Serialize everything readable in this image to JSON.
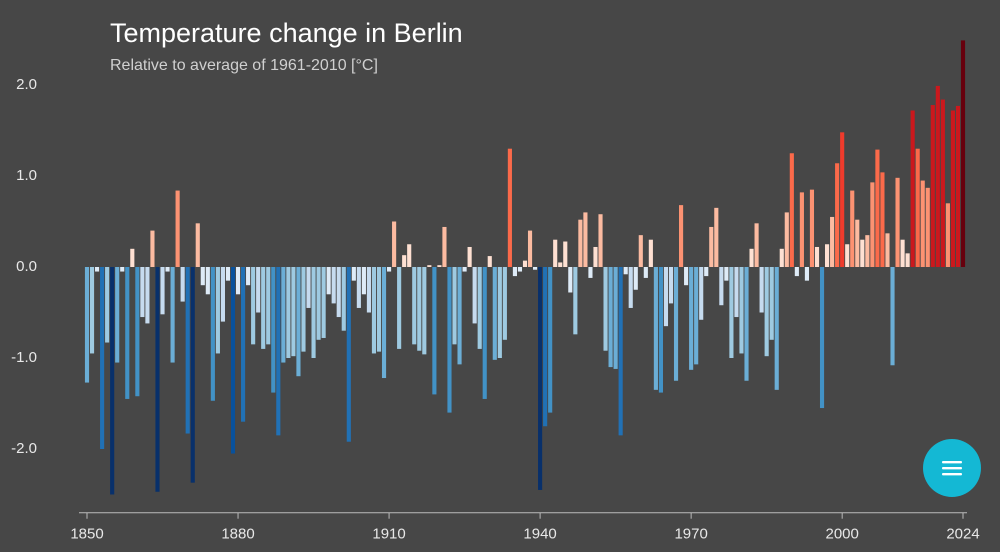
{
  "chart_data": {
    "type": "bar",
    "title": "Temperature change in Berlin",
    "subtitle": "Relative to average of 1961-2010  [°C]",
    "x": [
      1850,
      1851,
      1852,
      1853,
      1854,
      1855,
      1856,
      1857,
      1858,
      1859,
      1860,
      1861,
      1862,
      1863,
      1864,
      1865,
      1866,
      1867,
      1868,
      1869,
      1870,
      1871,
      1872,
      1873,
      1874,
      1875,
      1876,
      1877,
      1878,
      1879,
      1880,
      1881,
      1882,
      1883,
      1884,
      1885,
      1886,
      1887,
      1888,
      1889,
      1890,
      1891,
      1892,
      1893,
      1894,
      1895,
      1896,
      1897,
      1898,
      1899,
      1900,
      1901,
      1902,
      1903,
      1904,
      1905,
      1906,
      1907,
      1908,
      1909,
      1910,
      1911,
      1912,
      1913,
      1914,
      1915,
      1916,
      1917,
      1918,
      1919,
      1920,
      1921,
      1922,
      1923,
      1924,
      1925,
      1926,
      1927,
      1928,
      1929,
      1930,
      1931,
      1932,
      1933,
      1934,
      1935,
      1936,
      1937,
      1938,
      1939,
      1940,
      1941,
      1942,
      1943,
      1944,
      1945,
      1946,
      1947,
      1948,
      1949,
      1950,
      1951,
      1952,
      1953,
      1954,
      1955,
      1956,
      1957,
      1958,
      1959,
      1960,
      1961,
      1962,
      1963,
      1964,
      1965,
      1966,
      1967,
      1968,
      1969,
      1970,
      1971,
      1972,
      1973,
      1974,
      1975,
      1976,
      1977,
      1978,
      1979,
      1980,
      1981,
      1982,
      1983,
      1984,
      1985,
      1986,
      1987,
      1988,
      1989,
      1990,
      1991,
      1992,
      1993,
      1994,
      1995,
      1996,
      1997,
      1998,
      1999,
      2000,
      2001,
      2002,
      2003,
      2004,
      2005,
      2006,
      2007,
      2008,
      2009,
      2010,
      2011,
      2012,
      2013,
      2014,
      2015,
      2016,
      2017,
      2018,
      2019,
      2020,
      2021,
      2022,
      2023,
      2024
    ],
    "values": [
      -1.27,
      -0.95,
      -0.05,
      -2.0,
      -0.83,
      -2.5,
      -1.05,
      -0.05,
      -1.45,
      0.2,
      -1.42,
      -0.55,
      -0.62,
      0.4,
      -2.47,
      -0.52,
      -0.05,
      -1.05,
      0.84,
      -0.38,
      -1.83,
      -2.37,
      0.48,
      -0.2,
      -0.3,
      -1.47,
      -0.95,
      -0.6,
      -0.15,
      -2.05,
      -0.3,
      -1.7,
      -0.2,
      -0.85,
      -0.5,
      -0.9,
      -0.85,
      -1.38,
      -1.85,
      -1.05,
      -1.0,
      -0.98,
      -1.2,
      -0.93,
      -0.45,
      -1.0,
      -0.8,
      -0.78,
      -0.3,
      -0.4,
      -0.55,
      -0.7,
      -1.92,
      -0.15,
      -0.45,
      -0.3,
      -0.5,
      -0.95,
      -0.93,
      -1.22,
      -0.05,
      0.5,
      -0.9,
      0.13,
      0.25,
      -0.85,
      -0.92,
      -0.96,
      0.02,
      -1.4,
      0.02,
      0.44,
      -1.6,
      -0.85,
      -1.07,
      -0.05,
      0.22,
      -0.62,
      -0.9,
      -1.45,
      0.12,
      -1.02,
      -1.0,
      -0.8,
      1.3,
      -0.1,
      -0.05,
      0.07,
      0.4,
      -0.03,
      -2.45,
      -1.75,
      -1.6,
      0.3,
      0.05,
      0.28,
      -0.28,
      -0.74,
      0.52,
      0.6,
      -0.12,
      0.22,
      0.58,
      -0.92,
      -1.1,
      -1.12,
      -1.85,
      -0.08,
      -0.45,
      -0.25,
      0.35,
      -0.12,
      0.3,
      -1.35,
      -1.38,
      -0.65,
      -0.4,
      -1.25,
      0.68,
      -0.2,
      -1.13,
      -1.07,
      -0.58,
      -0.1,
      0.44,
      0.65,
      -0.42,
      -0.15,
      -1.0,
      -0.55,
      -0.95,
      -1.25,
      0.2,
      0.48,
      -0.5,
      -0.98,
      -0.8,
      -1.35,
      0.2,
      0.6,
      1.25,
      -0.1,
      0.82,
      -0.15,
      0.85,
      0.22,
      -1.55,
      0.25,
      0.55,
      1.14,
      1.48,
      0.25,
      0.84,
      0.52,
      0.3,
      0.35,
      0.93,
      1.29,
      1.04,
      0.37,
      -1.08,
      0.98,
      0.3,
      0.15,
      1.72,
      1.3,
      0.95,
      0.87,
      1.78,
      1.99,
      1.84,
      0.7,
      1.72,
      1.77,
      2.49
    ],
    "colorscale": [
      "#08306b",
      "#08519c",
      "#2171b5",
      "#4292c6",
      "#6baed6",
      "#9ecae1",
      "#c6dbef",
      "#deebf7",
      "#fee0d2",
      "#fcbba1",
      "#fc9272",
      "#fb6a4a",
      "#ef3b2c",
      "#cb181d",
      "#a50f15",
      "#67000d"
    ],
    "xlim": [
      1850,
      2024
    ],
    "xticks": [
      1850,
      1880,
      1910,
      1940,
      1970,
      2000,
      2024
    ],
    "ylim": [
      -2.7,
      2.6
    ],
    "yticks": [
      {
        "value": 2,
        "label": "2.0"
      },
      {
        "value": 1,
        "label": "1.0"
      },
      {
        "value": 0,
        "label": "0.0"
      },
      {
        "value": -1,
        "label": "-1.0"
      },
      {
        "value": -2,
        "label": "-2.0"
      }
    ],
    "grid": false
  }
}
